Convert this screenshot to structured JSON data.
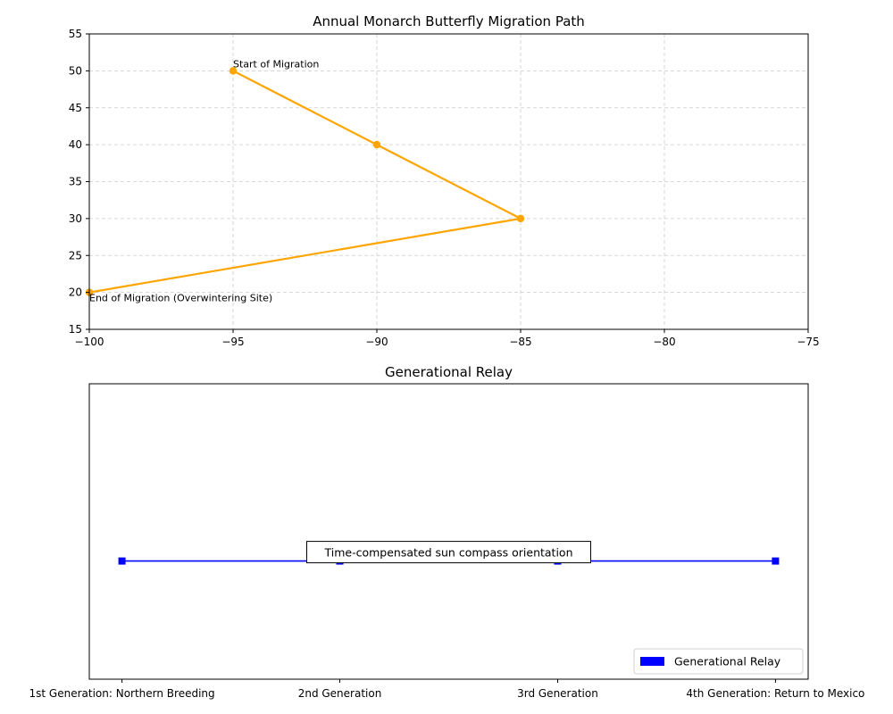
{
  "chart_data": [
    {
      "type": "line",
      "title": "Annual Monarch Butterfly Migration Path",
      "xlabel": "",
      "ylabel": "",
      "xlim": [
        -100,
        -75
      ],
      "ylim": [
        15,
        55
      ],
      "xticks": [
        -100,
        -95,
        -90,
        -85,
        -80,
        -75
      ],
      "yticks": [
        15,
        20,
        25,
        30,
        35,
        40,
        45,
        50,
        55
      ],
      "xtick_labels": [
        "−100",
        "−95",
        "−90",
        "−85",
        "−80",
        "−75"
      ],
      "ytick_labels": [
        "15",
        "20",
        "25",
        "30",
        "35",
        "40",
        "45",
        "50",
        "55"
      ],
      "grid": true,
      "series": [
        {
          "color": "#ffa500",
          "x": [
            -95,
            -90,
            -85,
            -100
          ],
          "y": [
            50,
            40,
            30,
            20
          ]
        }
      ],
      "annotations": [
        {
          "text": "Start of Migration",
          "x": -95,
          "y": 50
        },
        {
          "text": "End of Migration (Overwintering Site)",
          "x": -100,
          "y": 20
        }
      ]
    },
    {
      "type": "line",
      "title": "Generational Relay",
      "categories": [
        "1st Generation: Northern Breeding",
        "2nd Generation",
        "3rd Generation",
        "4th Generation: Return to Mexico"
      ],
      "x": [
        0,
        1,
        2,
        3
      ],
      "values": [
        1,
        1,
        1,
        1
      ],
      "xlim": [
        -0.15,
        3.15
      ],
      "grid": false,
      "series": [
        {
          "name": "Generational Relay",
          "color": "#0000ff",
          "values": [
            1,
            1,
            1,
            1
          ]
        }
      ],
      "annotations": [
        {
          "text": "Time-compensated sun compass orientation",
          "x": 1.5,
          "y": 1
        }
      ],
      "legend": {
        "placement": "lower-right",
        "entries": [
          "Generational Relay"
        ]
      }
    }
  ]
}
